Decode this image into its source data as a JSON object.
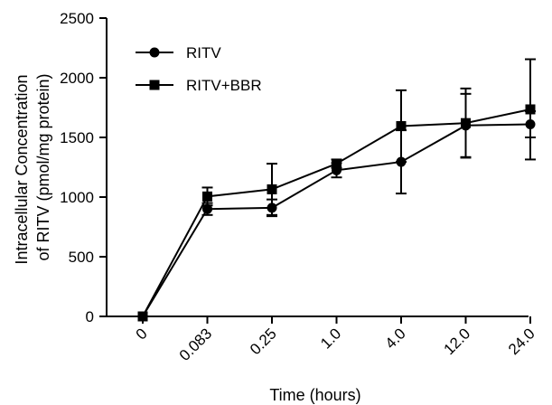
{
  "chart_data": {
    "type": "line",
    "title": "",
    "xlabel": "Time (hours)",
    "ylabel": [
      "Intracellular Concentration",
      "of RITV (pmol/mg protein)"
    ],
    "categories": [
      "0",
      "0.083",
      "0.25",
      "1.0",
      "4.0",
      "12.0",
      "24.0"
    ],
    "ylim": [
      0,
      2500
    ],
    "yticks": [
      "0",
      "500",
      "1000",
      "1500",
      "2000",
      "2500"
    ],
    "grid": false,
    "legend_position": "top-left",
    "series": [
      {
        "name": "RITV",
        "marker": "circle",
        "values": [
          0,
          900,
          910,
          1225,
          1295,
          1600,
          1610
        ],
        "errors": [
          0,
          50,
          70,
          60,
          265,
          265,
          110
        ]
      },
      {
        "name": "RITV+BBR",
        "marker": "square",
        "values": [
          0,
          1005,
          1065,
          1280,
          1595,
          1620,
          1735
        ],
        "errors": [
          0,
          75,
          215,
          35,
          300,
          290,
          420
        ]
      }
    ]
  }
}
